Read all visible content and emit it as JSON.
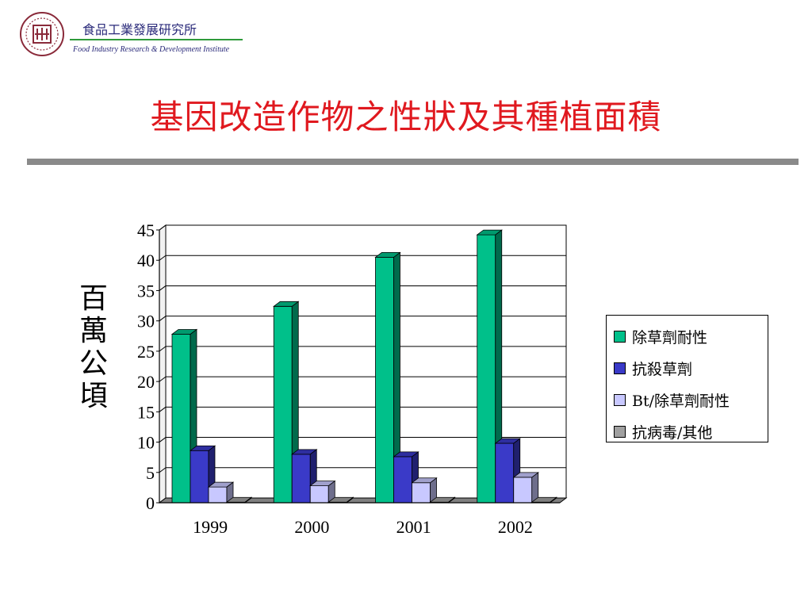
{
  "header": {
    "org_name_zh": "食品工業發展研究所",
    "org_name_en": "Food Industry Research & Development Institute",
    "logo_icon": "institute-seal-icon",
    "accent_line_color": "#2e9a3a"
  },
  "title": "基因改造作物之性狀及其種植面積",
  "chart_data": {
    "type": "bar",
    "title": "",
    "xlabel": "",
    "ylabel": "百萬公頃",
    "ylim": [
      0,
      45
    ],
    "yticks": [
      0,
      5,
      10,
      15,
      20,
      25,
      30,
      35,
      40,
      45
    ],
    "grid": true,
    "legend_position": "right",
    "categories": [
      "1999",
      "2000",
      "2001",
      "2002"
    ],
    "series": [
      {
        "name": "除草劑耐性",
        "color": "#00c08a",
        "values": [
          27.8,
          32.4,
          40.5,
          44.2
        ]
      },
      {
        "name": "抗殺草劑",
        "color": "#3a3ac8",
        "values": [
          8.6,
          8.0,
          7.6,
          9.8
        ]
      },
      {
        "name": "Bt/除草劑耐性",
        "color": "#c8c8ff",
        "values": [
          2.6,
          2.8,
          3.3,
          4.2
        ]
      },
      {
        "name": "抗病毒/其他",
        "color": "#a0a0a0",
        "values": [
          0.1,
          0.1,
          0.1,
          0.1
        ]
      }
    ]
  }
}
